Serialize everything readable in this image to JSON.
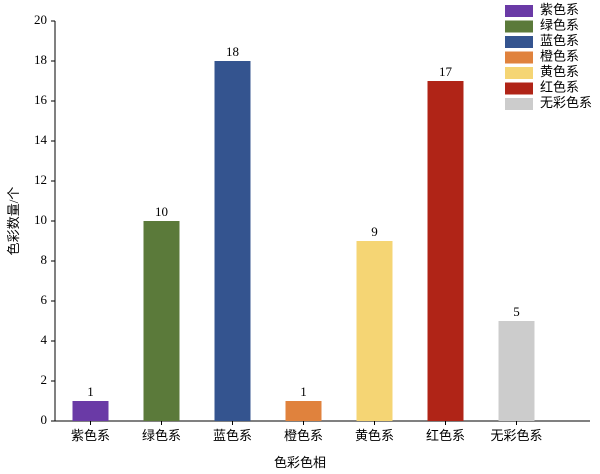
{
  "chart_data": {
    "type": "bar",
    "categories": [
      "紫色系",
      "绿色系",
      "蓝色系",
      "橙色系",
      "黄色系",
      "红色系",
      "无彩色系"
    ],
    "values": [
      1,
      10,
      18,
      1,
      9,
      17,
      5
    ],
    "colors": [
      "#6a3aa6",
      "#5b7a3a",
      "#34548f",
      "#e0823d",
      "#f5d574",
      "#b02417",
      "#cccccc"
    ],
    "xlabel": "色彩色相",
    "ylabel": "色彩数量/个",
    "ylim": [
      0,
      20
    ],
    "yticks": [
      0,
      2,
      4,
      6,
      8,
      10,
      12,
      14,
      16,
      18,
      20
    ],
    "legend": "upper right",
    "data_labels": true
  }
}
